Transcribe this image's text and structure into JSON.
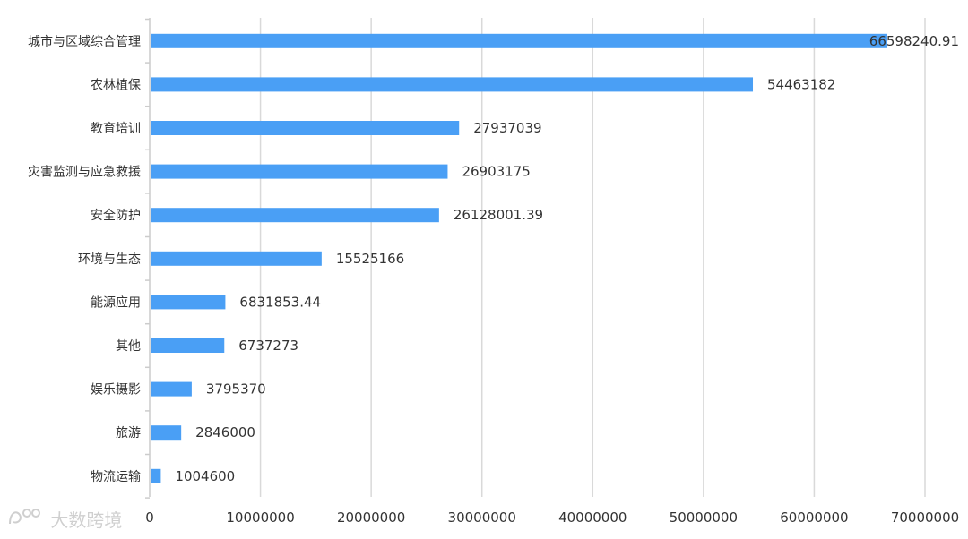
{
  "chart_data": {
    "type": "bar",
    "orientation": "horizontal",
    "title": "",
    "xlabel": "",
    "ylabel": "",
    "categories": [
      "城市与区域综合管理",
      "农林植保",
      "教育培训",
      "灾害监测与应急救援",
      "安全防护",
      "环境与生态",
      "能源应用",
      "其他",
      "娱乐摄影",
      "旅游",
      "物流运输"
    ],
    "values": [
      66598240.91,
      54463182,
      27937039,
      26903175,
      26128001.39,
      15525166,
      6831853.44,
      6737273,
      3795370,
      2846000,
      1004600
    ],
    "value_labels": [
      "66598240.91",
      "54463182",
      "27937039",
      "26903175",
      "26128001.39",
      "15525166",
      "6831853.44",
      "6737273",
      "3795370",
      "2846000",
      "1004600"
    ],
    "xlim": [
      0,
      70000000
    ],
    "xticks": [
      0,
      10000000,
      20000000,
      30000000,
      40000000,
      50000000,
      60000000,
      70000000
    ],
    "xtick_labels": [
      "0",
      "10000000",
      "20000000",
      "30000000",
      "40000000",
      "50000000",
      "60000000",
      "70000000"
    ],
    "grid": "vertical",
    "colors": {
      "bar": "#4a9ff5",
      "grid": "#d9d9d9",
      "axis": "#cccccc",
      "text": "#333333"
    }
  },
  "watermark": {
    "text": "大数跨境"
  }
}
